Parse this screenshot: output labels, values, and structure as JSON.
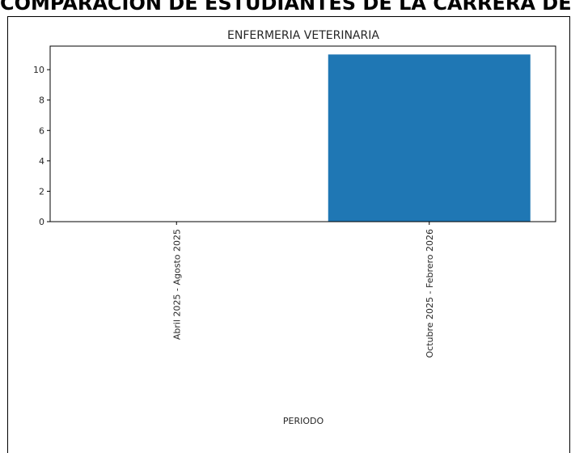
{
  "page": {
    "heading": "COMPARACIÓN DE ESTUDIANTES DE LA CARRERA DE"
  },
  "chart_data": {
    "type": "bar",
    "title": "ENFERMERIA VETERINARIA",
    "xlabel": "PERIODO",
    "ylabel": "",
    "categories": [
      "Abril 2025 - Agosto 2025",
      "Octubre 2025 - Febrero 2026"
    ],
    "values": [
      0,
      11
    ],
    "ylim": [
      0,
      11.55
    ],
    "yticks": [
      0,
      2,
      4,
      6,
      8,
      10
    ],
    "ytick_labels": [
      "0",
      "2",
      "4",
      "6",
      "8",
      "10"
    ],
    "bar_color": "#1f77b4",
    "grid": false,
    "legend": "none"
  }
}
